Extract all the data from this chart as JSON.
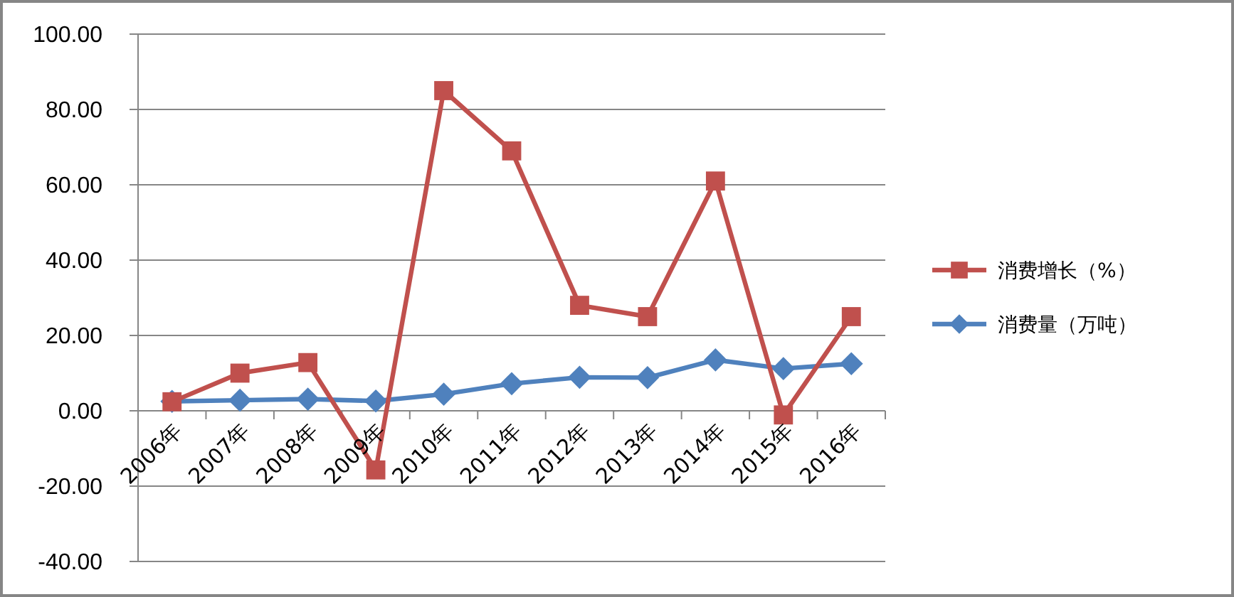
{
  "chart_data": {
    "type": "line",
    "categories": [
      "2006年",
      "2007年",
      "2008年",
      "2009年",
      "2010年",
      "2011年",
      "2012年",
      "2013年",
      "2014年",
      "2015年",
      "2016年"
    ],
    "series": [
      {
        "name": "消费增长（%）",
        "color": "#c0504d",
        "marker": "square",
        "values": [
          2.4,
          10,
          12.8,
          -15.7,
          85,
          69,
          28,
          25,
          61,
          -1.1,
          25
        ]
      },
      {
        "name": "消费量（万吨）",
        "color": "#4f81bd",
        "marker": "diamond",
        "values": [
          2.5,
          2.8,
          3.1,
          2.6,
          4.4,
          7.2,
          8.9,
          8.8,
          13.5,
          11.2,
          12.5
        ]
      }
    ],
    "ylim": [
      -40,
      100
    ],
    "yticks": [
      {
        "value": -40,
        "label": "-40.00"
      },
      {
        "value": -20,
        "label": "-20.00"
      },
      {
        "value": 0,
        "label": "0.00"
      },
      {
        "value": 20,
        "label": "20.00"
      },
      {
        "value": 40,
        "label": "40.00"
      },
      {
        "value": 60,
        "label": "60.00"
      },
      {
        "value": 80,
        "label": "80.00"
      },
      {
        "value": 100,
        "label": "100.00"
      }
    ],
    "grid": "y",
    "legend": "right"
  }
}
